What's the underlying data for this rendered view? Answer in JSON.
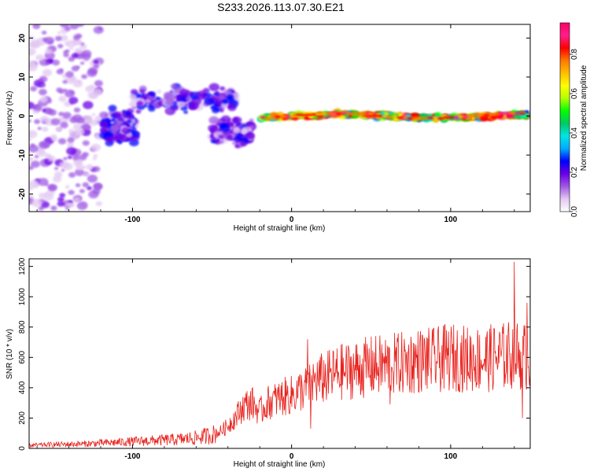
{
  "title": "S233.2026.113.07.30.E21",
  "chart_data": [
    {
      "type": "heatmap",
      "xlabel": "Height of straight line (km)",
      "ylabel": "Frequency (Hz)",
      "xlim": [
        -165,
        150
      ],
      "ylim": [
        -24.5,
        23.5
      ],
      "x_ticks": [
        -100,
        0,
        100
      ],
      "x_tick_labels": [
        "-100",
        "0",
        "100"
      ],
      "y_ticks": [
        -20,
        -10,
        0,
        10,
        20
      ],
      "y_tick_labels": [
        "-20",
        "-10",
        "0",
        "10",
        "20"
      ],
      "colorbar": {
        "label": "Normalized spectral amplitude",
        "range": [
          0.0,
          0.96
        ],
        "ticks": [
          0.0,
          0.2,
          0.4,
          0.6,
          0.8
        ],
        "tick_labels": [
          "0.0",
          "0.2",
          "0.4",
          "0.6",
          "0.8"
        ],
        "colors": [
          "#ffffff",
          "#e2c8f2",
          "#a05ae6",
          "#6a00e6",
          "#0000ff",
          "#00aaff",
          "#00e6e6",
          "#00c864",
          "#00ff00",
          "#b4ff00",
          "#ffff00",
          "#ffbe00",
          "#ff7800",
          "#ff0000",
          "#ff1e8c",
          "#ff0064"
        ]
      },
      "features": [
        {
          "x_range": [
            -165,
            -120
          ],
          "freq_center": 0,
          "freq_spread": 24,
          "amplitude": 0.12
        },
        {
          "x_range": [
            -118,
            -98
          ],
          "freq_center": -3,
          "freq_spread": 6,
          "amplitude": 0.2
        },
        {
          "x_range": [
            -100,
            -35
          ],
          "freq_center": 4,
          "freq_spread": 5,
          "amplitude": 0.2
        },
        {
          "x_range": [
            -50,
            -25
          ],
          "freq_center": -4,
          "freq_spread": 5,
          "amplitude": 0.18
        },
        {
          "x_range": [
            -20,
            150
          ],
          "freq_center": 0,
          "freq_spread": 1.2,
          "amplitude": 0.75
        }
      ],
      "grid": false
    },
    {
      "type": "line",
      "xlabel": "Height of straight line (km)",
      "ylabel": "SNR (10 * v/v)",
      "xlim": [
        -165,
        150
      ],
      "ylim": [
        0,
        1250
      ],
      "x_ticks": [
        -100,
        0,
        100
      ],
      "x_tick_labels": [
        "-100",
        "0",
        "100"
      ],
      "y_ticks": [
        0,
        200,
        400,
        600,
        800,
        1000,
        1200
      ],
      "y_tick_labels": [
        "0",
        "200",
        "400",
        "600",
        "800",
        "1000",
        "1200"
      ],
      "series": [
        {
          "color": "#e8221d",
          "x": [
            -165,
            -150,
            -130,
            -110,
            -100,
            -90,
            -80,
            -70,
            -60,
            -50,
            -45,
            -40,
            -35,
            -30,
            -25,
            -20,
            -15,
            -10,
            -5,
            0,
            5,
            10,
            15,
            20,
            25,
            30,
            40,
            50,
            60,
            70,
            80,
            90,
            100,
            110,
            120,
            130,
            140,
            150
          ],
          "y": [
            20,
            25,
            30,
            40,
            45,
            50,
            55,
            60,
            70,
            90,
            110,
            150,
            210,
            280,
            300,
            240,
            300,
            320,
            340,
            350,
            380,
            400,
            450,
            460,
            480,
            500,
            520,
            540,
            550,
            560,
            580,
            580,
            600,
            590,
            590,
            600,
            620,
            600
          ],
          "spikes": [
            {
              "x": 10,
              "y": 720
            },
            {
              "x": 12,
              "y": 130
            },
            {
              "x": 62,
              "y": 290
            },
            {
              "x": 140,
              "y": 1230
            },
            {
              "x": 145,
              "y": 200
            },
            {
              "x": 148,
              "y": 960
            }
          ]
        }
      ],
      "grid": false
    }
  ]
}
